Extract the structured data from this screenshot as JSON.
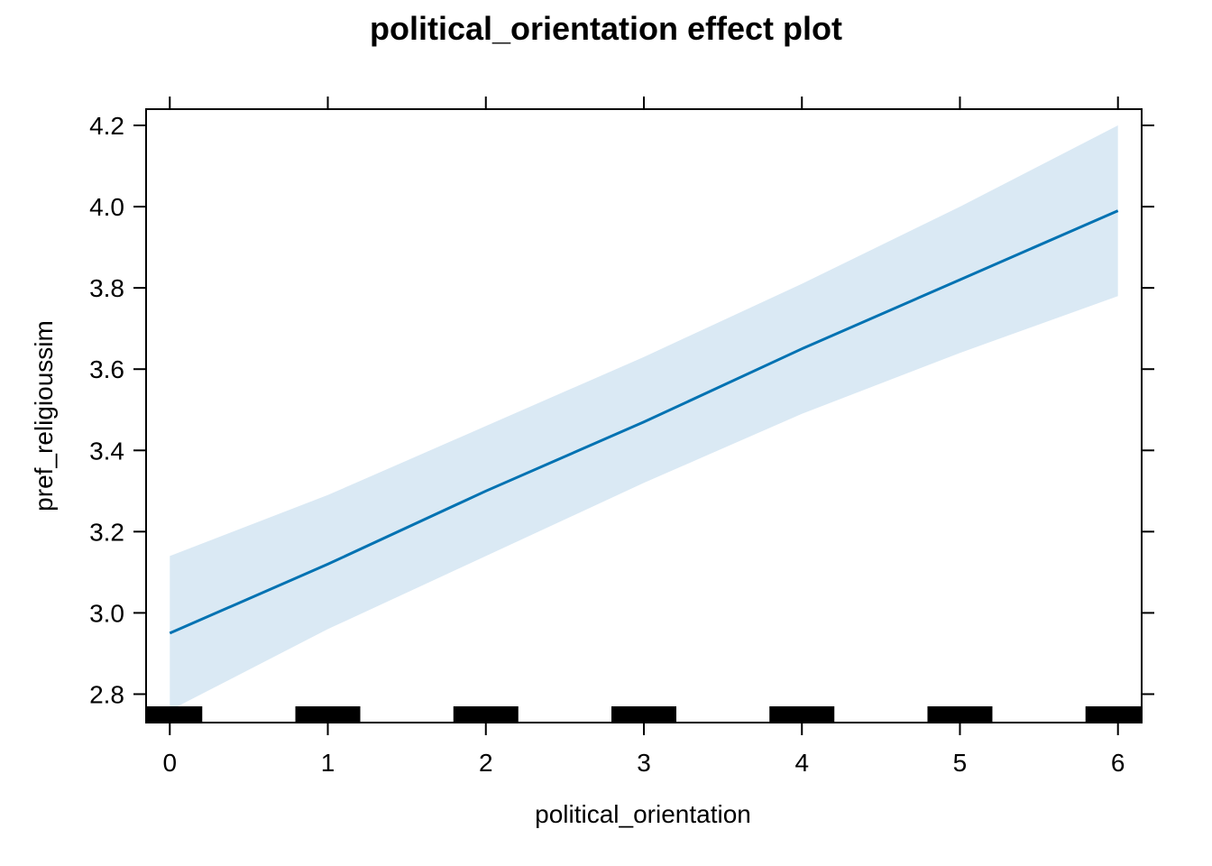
{
  "chart_data": {
    "type": "line",
    "title": "political_orientation effect plot",
    "xlabel": "political_orientation",
    "ylabel": "pref_religioussim",
    "xlim": [
      -0.15,
      6.15
    ],
    "ylim": [
      2.73,
      4.24
    ],
    "x_ticks": [
      "0",
      "1",
      "2",
      "3",
      "4",
      "5",
      "6"
    ],
    "y_ticks": [
      "2.8",
      "3.0",
      "3.2",
      "3.4",
      "3.6",
      "3.8",
      "4.0",
      "4.2"
    ],
    "series": [
      {
        "x": [
          0,
          1,
          2,
          3,
          4,
          5,
          6
        ],
        "fit": [
          2.95,
          3.12,
          3.3,
          3.47,
          3.65,
          3.82,
          3.99
        ],
        "lower": [
          2.76,
          2.96,
          3.14,
          3.32,
          3.49,
          3.64,
          3.78
        ],
        "upper": [
          3.14,
          3.29,
          3.46,
          3.63,
          3.81,
          4.0,
          4.2
        ]
      }
    ],
    "rug_x": [
      0,
      1,
      2,
      3,
      4,
      5,
      6
    ],
    "colors": {
      "line": "#0072b2",
      "band": "#dae9f4",
      "rug": "#000000"
    },
    "grid": false,
    "legend": "none"
  }
}
